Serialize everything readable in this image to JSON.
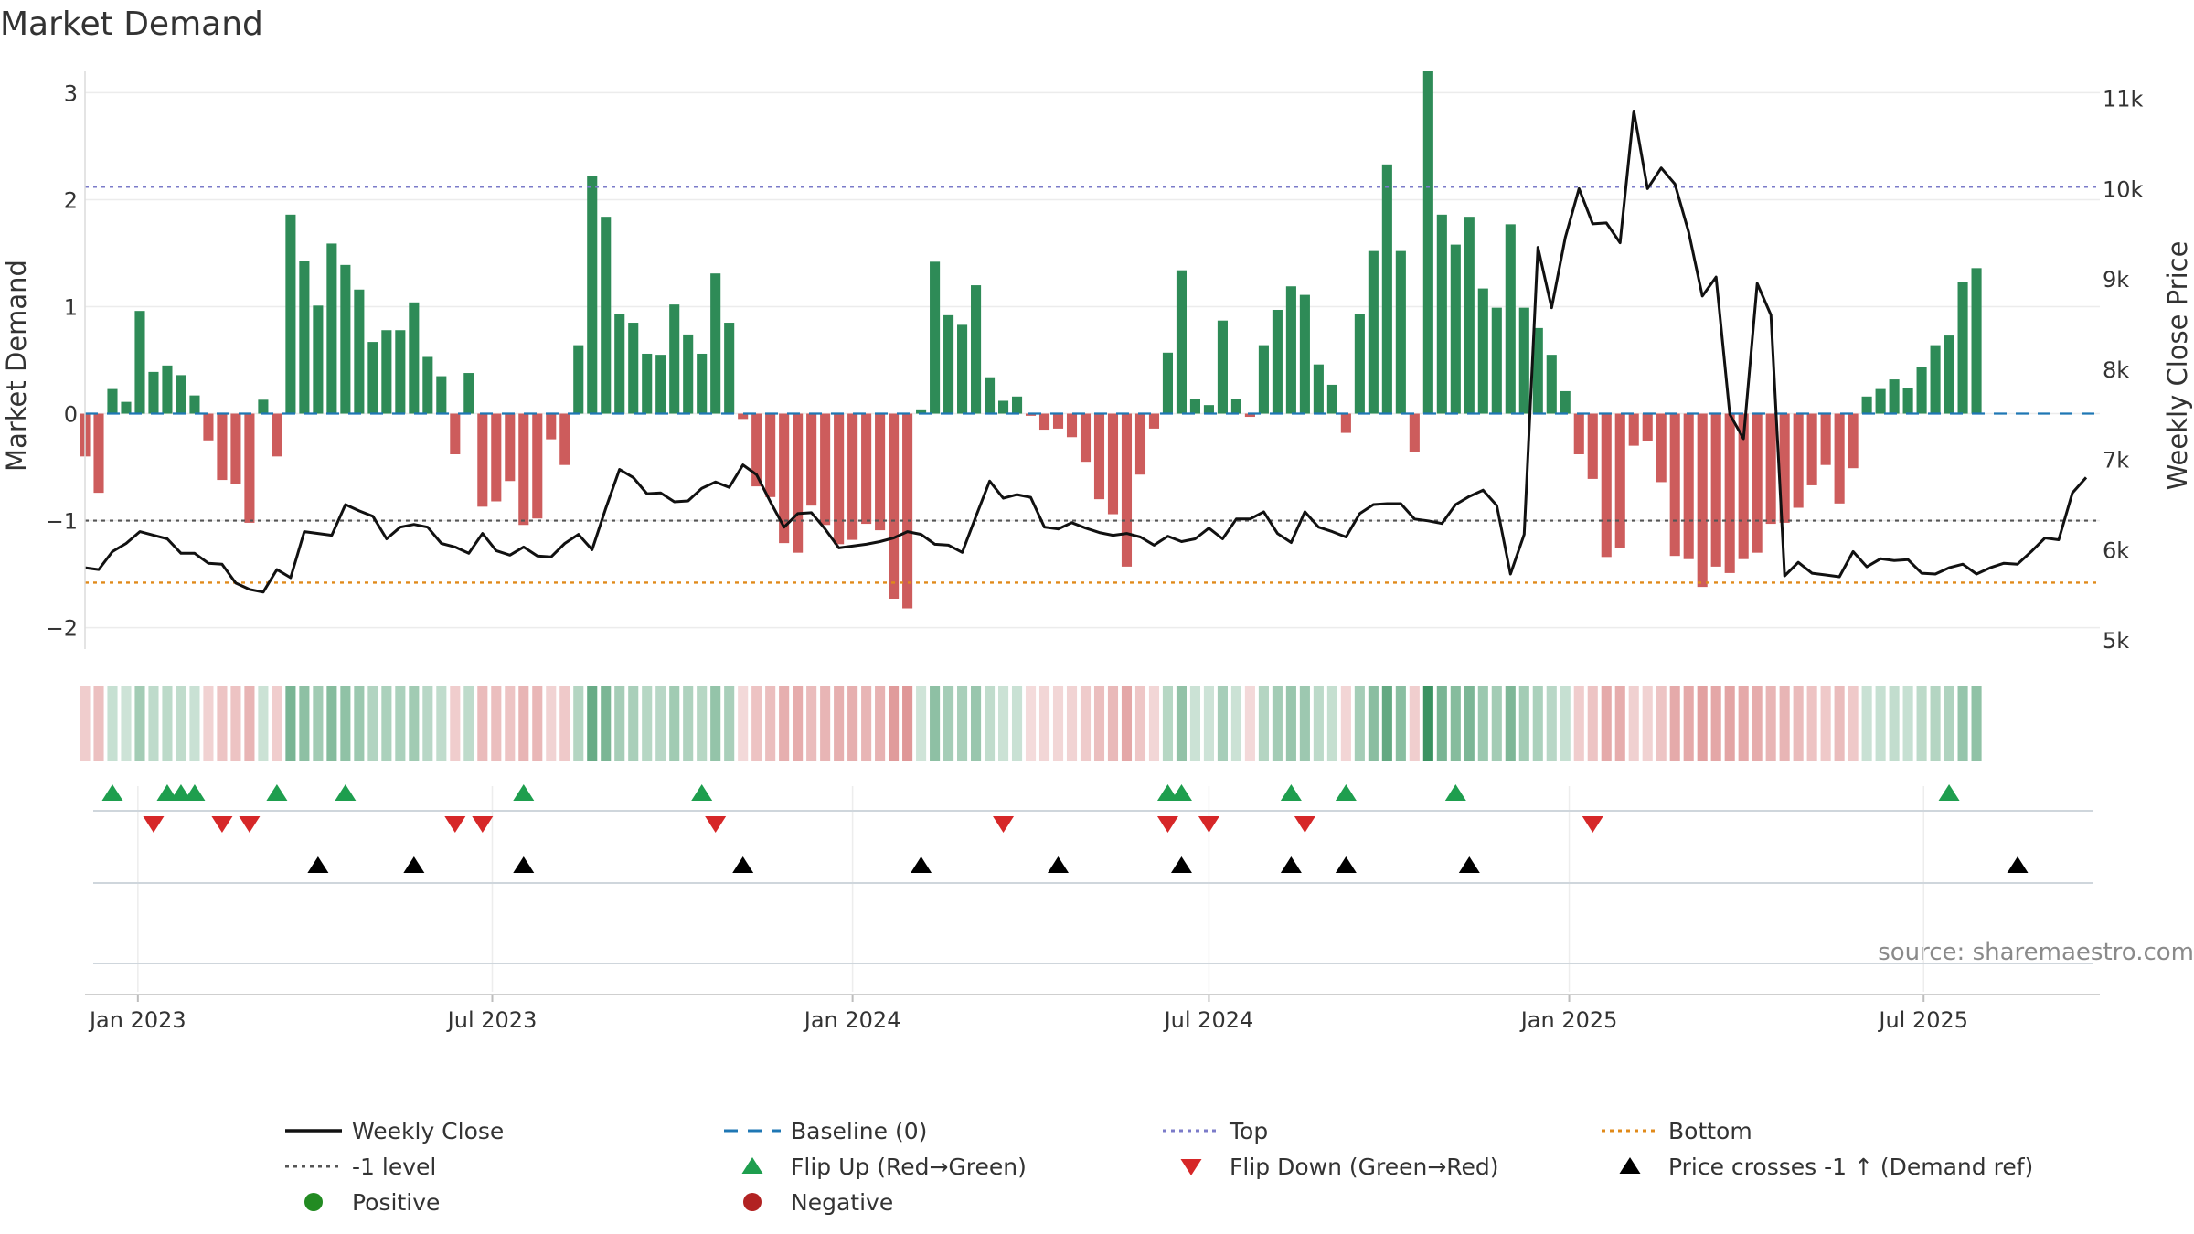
{
  "chart_data": {
    "type": "bar",
    "title": "Market Demand",
    "ylabel": "Market Demand",
    "y2label": "Weekly Close Price",
    "ylim": [
      -2.2,
      3.2
    ],
    "yticks": [
      3,
      2,
      1,
      0,
      -1,
      -2
    ],
    "ytick_labels": [
      "3",
      "2",
      "1",
      "0",
      "−1",
      "−2"
    ],
    "y2lim": [
      4900,
      11300
    ],
    "y2ticks": [
      11000,
      10000,
      9000,
      8000,
      7000,
      6000,
      5000
    ],
    "y2tick_labels": [
      "11k",
      "10k",
      "9k",
      "8k",
      "7k",
      "6k",
      "5k"
    ],
    "x_start": "2022-12-05",
    "x_end": "2025-09-29",
    "x_ticks": [
      {
        "date": "2023-01-01",
        "label": "Jan 2023"
      },
      {
        "date": "2023-07-01",
        "label": "Jul 2023"
      },
      {
        "date": "2024-01-01",
        "label": "Jan 2024"
      },
      {
        "date": "2024-07-01",
        "label": "Jul 2024"
      },
      {
        "date": "2025-01-01",
        "label": "Jan 2025"
      },
      {
        "date": "2025-07-01",
        "label": "Jul 2025"
      }
    ],
    "first_week": "2022-12-05",
    "week_days": 7,
    "demand": [
      -0.4,
      -0.74,
      0.23,
      0.11,
      0.96,
      0.39,
      0.45,
      0.36,
      0.17,
      -0.25,
      -0.62,
      -0.66,
      -1.02,
      0.13,
      -0.4,
      1.86,
      1.43,
      1.01,
      1.59,
      1.39,
      1.16,
      0.67,
      0.78,
      0.78,
      1.04,
      0.53,
      0.35,
      -0.38,
      0.38,
      -0.87,
      -0.82,
      -0.63,
      -1.04,
      -0.98,
      -0.24,
      -0.48,
      0.64,
      2.22,
      1.84,
      0.93,
      0.85,
      0.56,
      0.55,
      1.02,
      0.74,
      0.56,
      1.31,
      0.85,
      -0.05,
      -0.68,
      -0.78,
      -1.21,
      -1.3,
      -0.86,
      -1.04,
      -1.22,
      -1.18,
      -1.03,
      -1.09,
      -1.73,
      -1.82,
      0.04,
      1.42,
      0.92,
      0.83,
      1.2,
      0.34,
      0.12,
      0.16,
      -0.02,
      -0.15,
      -0.14,
      -0.22,
      -0.45,
      -0.8,
      -0.94,
      -1.43,
      -0.57,
      -0.14,
      0.57,
      1.34,
      0.14,
      0.08,
      0.87,
      0.14,
      -0.03,
      0.64,
      0.97,
      1.19,
      1.11,
      0.46,
      0.27,
      -0.18,
      0.93,
      1.52,
      2.33,
      1.52,
      -0.36,
      3.2,
      1.86,
      1.58,
      1.84,
      1.17,
      0.99,
      1.77,
      0.99,
      0.8,
      0.55,
      0.21,
      -0.38,
      -0.61,
      -1.34,
      -1.26,
      -0.3,
      -0.26,
      -0.64,
      -1.33,
      -1.36,
      -1.62,
      -1.43,
      -1.49,
      -1.36,
      -1.3,
      -1.03,
      -1.02,
      -0.88,
      -0.67,
      -0.48,
      -0.84,
      -0.51,
      0.16,
      0.23,
      0.32,
      0.24,
      0.44,
      0.64,
      0.73,
      1.23,
      1.36
    ],
    "close": [
      5800,
      5780,
      5980,
      6070,
      6200,
      6160,
      6120,
      5960,
      5960,
      5850,
      5840,
      5630,
      5560,
      5530,
      5780,
      5690,
      6200,
      6180,
      6160,
      6500,
      6430,
      6370,
      6120,
      6250,
      6280,
      6250,
      6070,
      6030,
      5960,
      6180,
      5990,
      5940,
      6030,
      5930,
      5920,
      6070,
      6170,
      6000,
      6460,
      6890,
      6800,
      6620,
      6630,
      6530,
      6540,
      6680,
      6750,
      6690,
      6940,
      6830,
      6530,
      6250,
      6400,
      6410,
      6230,
      6020,
      6040,
      6060,
      6090,
      6130,
      6200,
      6170,
      6060,
      6050,
      5970,
      6370,
      6760,
      6570,
      6610,
      6580,
      6250,
      6230,
      6300,
      6240,
      6190,
      6160,
      6180,
      6140,
      6050,
      6150,
      6090,
      6120,
      6240,
      6120,
      6340,
      6340,
      6420,
      6180,
      6080,
      6420,
      6250,
      6200,
      6140,
      6400,
      6500,
      6510,
      6510,
      6340,
      6320,
      6290,
      6500,
      6590,
      6660,
      6490,
      5730,
      6170,
      9350,
      8680,
      9460,
      10000,
      9610,
      9620,
      9400,
      10860,
      10000,
      10230,
      10050,
      9520,
      8810,
      9020,
      7500,
      7230,
      8950,
      8600,
      5710,
      5860,
      5740,
      5720,
      5700,
      5980,
      5810,
      5900,
      5880,
      5890,
      5740,
      5730,
      5800,
      5840,
      5730,
      5800,
      5850,
      5840,
      5980,
      6130,
      6110,
      6630,
      6800
    ],
    "top_level": 2.12,
    "neg_level": -1.0,
    "bottom_level": -1.58,
    "flip_up_weeks": [
      2,
      6,
      7,
      8,
      14,
      19,
      32,
      45,
      79,
      80,
      88,
      92,
      100,
      136
    ],
    "flip_down_weeks": [
      5,
      10,
      12,
      27,
      29,
      46,
      67,
      79,
      82,
      89,
      110
    ],
    "price_cross_weeks": [
      17,
      24,
      32,
      48,
      61,
      71,
      80,
      88,
      92,
      101,
      141
    ],
    "source": "source: sharemaestro.com",
    "colors": {
      "positive_bar": "#2e8b57",
      "negative_bar": "#cd5c5c",
      "close_line": "#111111",
      "baseline": "#1f77b4",
      "top_line": "#7b7bc9",
      "neg_line": "#555555",
      "bottom_line": "#e08a1a",
      "flip_up": "#1e9e4e",
      "flip_down": "#d62728",
      "price_cross": "#000000",
      "positive_dot": "#228b22",
      "negative_dot": "#b22222"
    },
    "legend": [
      {
        "key": "weekly_close",
        "label": "Weekly Close",
        "style": "line",
        "color": "#111111"
      },
      {
        "key": "baseline",
        "label": "Baseline (0)",
        "style": "dash",
        "color": "#1f77b4"
      },
      {
        "key": "top",
        "label": "Top",
        "style": "dot",
        "color": "#7b7bc9"
      },
      {
        "key": "bottom",
        "label": "Bottom",
        "style": "dot",
        "color": "#e08a1a"
      },
      {
        "key": "neg_level",
        "label": "-1 level",
        "style": "dot",
        "color": "#555555"
      },
      {
        "key": "flip_up",
        "label": "Flip Up (Red→Green)",
        "style": "tri-up",
        "color": "#1e9e4e"
      },
      {
        "key": "flip_down",
        "label": "Flip Down (Green→Red)",
        "style": "tri-down",
        "color": "#d62728"
      },
      {
        "key": "price_cross",
        "label": "Price crosses -1 ↑ (Demand ref)",
        "style": "tri-up",
        "color": "#000000"
      },
      {
        "key": "positive",
        "label": "Positive",
        "style": "dot-marker",
        "color": "#228b22"
      },
      {
        "key": "negative",
        "label": "Negative",
        "style": "dot-marker",
        "color": "#b22222"
      }
    ]
  }
}
